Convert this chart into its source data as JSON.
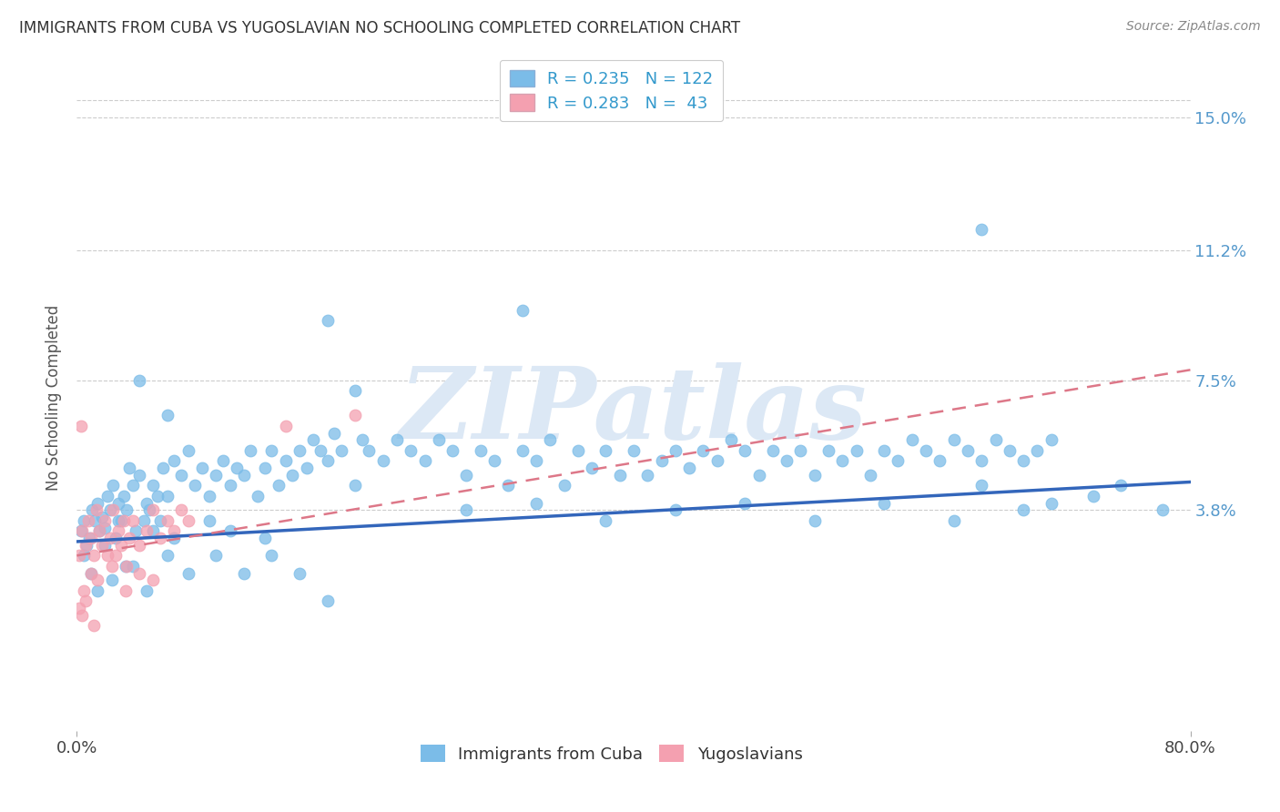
{
  "title": "IMMIGRANTS FROM CUBA VS YUGOSLAVIAN NO SCHOOLING COMPLETED CORRELATION CHART",
  "source": "Source: ZipAtlas.com",
  "ylabel_label": "No Schooling Completed",
  "ytick_values": [
    3.8,
    7.5,
    11.2,
    15.0
  ],
  "ytick_labels": [
    "3.8%",
    "7.5%",
    "11.2%",
    "15.0%"
  ],
  "xlim": [
    0.0,
    80.0
  ],
  "ylim": [
    -2.5,
    16.5
  ],
  "blue_color": "#7bbce8",
  "pink_color": "#f4a0b0",
  "trend_blue": "#3366bb",
  "trend_pink": "#dd7788",
  "watermark_color": "#dce8f5",
  "blue_line_x": [
    0,
    80
  ],
  "blue_line_y": [
    2.9,
    4.6
  ],
  "pink_line_x": [
    0,
    80
  ],
  "pink_line_y": [
    2.5,
    7.8
  ],
  "blue_scatter": [
    [
      0.3,
      3.2
    ],
    [
      0.5,
      3.5
    ],
    [
      0.7,
      2.8
    ],
    [
      0.9,
      3.0
    ],
    [
      1.1,
      3.8
    ],
    [
      1.3,
      3.5
    ],
    [
      1.5,
      4.0
    ],
    [
      1.6,
      3.2
    ],
    [
      1.8,
      3.6
    ],
    [
      2.0,
      3.3
    ],
    [
      2.2,
      4.2
    ],
    [
      2.4,
      3.8
    ],
    [
      2.6,
      4.5
    ],
    [
      2.8,
      3.0
    ],
    [
      3.0,
      4.0
    ],
    [
      3.2,
      3.5
    ],
    [
      3.4,
      4.2
    ],
    [
      3.6,
      3.8
    ],
    [
      3.8,
      5.0
    ],
    [
      4.0,
      4.5
    ],
    [
      4.2,
      3.2
    ],
    [
      4.5,
      4.8
    ],
    [
      4.8,
      3.5
    ],
    [
      5.0,
      4.0
    ],
    [
      5.2,
      3.8
    ],
    [
      5.5,
      4.5
    ],
    [
      5.8,
      4.2
    ],
    [
      6.0,
      3.5
    ],
    [
      6.2,
      5.0
    ],
    [
      6.5,
      4.2
    ],
    [
      7.0,
      5.2
    ],
    [
      7.5,
      4.8
    ],
    [
      8.0,
      5.5
    ],
    [
      8.5,
      4.5
    ],
    [
      9.0,
      5.0
    ],
    [
      9.5,
      4.2
    ],
    [
      10.0,
      4.8
    ],
    [
      10.5,
      5.2
    ],
    [
      11.0,
      4.5
    ],
    [
      11.5,
      5.0
    ],
    [
      12.0,
      4.8
    ],
    [
      12.5,
      5.5
    ],
    [
      13.0,
      4.2
    ],
    [
      13.5,
      5.0
    ],
    [
      14.0,
      5.5
    ],
    [
      14.5,
      4.5
    ],
    [
      15.0,
      5.2
    ],
    [
      15.5,
      4.8
    ],
    [
      16.0,
      5.5
    ],
    [
      16.5,
      5.0
    ],
    [
      17.0,
      5.8
    ],
    [
      17.5,
      5.5
    ],
    [
      18.0,
      5.2
    ],
    [
      18.5,
      6.0
    ],
    [
      19.0,
      5.5
    ],
    [
      20.0,
      4.5
    ],
    [
      20.5,
      5.8
    ],
    [
      21.0,
      5.5
    ],
    [
      22.0,
      5.2
    ],
    [
      23.0,
      5.8
    ],
    [
      24.0,
      5.5
    ],
    [
      25.0,
      5.2
    ],
    [
      26.0,
      5.8
    ],
    [
      27.0,
      5.5
    ],
    [
      28.0,
      4.8
    ],
    [
      29.0,
      5.5
    ],
    [
      30.0,
      5.2
    ],
    [
      31.0,
      4.5
    ],
    [
      32.0,
      5.5
    ],
    [
      33.0,
      5.2
    ],
    [
      34.0,
      5.8
    ],
    [
      35.0,
      4.5
    ],
    [
      36.0,
      5.5
    ],
    [
      37.0,
      5.0
    ],
    [
      38.0,
      5.5
    ],
    [
      39.0,
      4.8
    ],
    [
      40.0,
      5.5
    ],
    [
      41.0,
      4.8
    ],
    [
      42.0,
      5.2
    ],
    [
      43.0,
      5.5
    ],
    [
      44.0,
      5.0
    ],
    [
      45.0,
      5.5
    ],
    [
      46.0,
      5.2
    ],
    [
      47.0,
      5.8
    ],
    [
      48.0,
      5.5
    ],
    [
      49.0,
      4.8
    ],
    [
      50.0,
      5.5
    ],
    [
      51.0,
      5.2
    ],
    [
      52.0,
      5.5
    ],
    [
      53.0,
      4.8
    ],
    [
      54.0,
      5.5
    ],
    [
      55.0,
      5.2
    ],
    [
      56.0,
      5.5
    ],
    [
      57.0,
      4.8
    ],
    [
      58.0,
      5.5
    ],
    [
      59.0,
      5.2
    ],
    [
      60.0,
      5.8
    ],
    [
      61.0,
      5.5
    ],
    [
      62.0,
      5.2
    ],
    [
      63.0,
      5.8
    ],
    [
      64.0,
      5.5
    ],
    [
      65.0,
      5.2
    ],
    [
      66.0,
      5.8
    ],
    [
      67.0,
      5.5
    ],
    [
      68.0,
      5.2
    ],
    [
      69.0,
      5.5
    ],
    [
      70.0,
      5.8
    ],
    [
      1.0,
      2.0
    ],
    [
      1.5,
      1.5
    ],
    [
      2.5,
      1.8
    ],
    [
      3.5,
      2.2
    ],
    [
      5.0,
      1.5
    ],
    [
      6.5,
      2.5
    ],
    [
      8.0,
      2.0
    ],
    [
      10.0,
      2.5
    ],
    [
      12.0,
      2.0
    ],
    [
      14.0,
      2.5
    ],
    [
      16.0,
      2.0
    ],
    [
      18.0,
      1.2
    ],
    [
      0.5,
      2.5
    ],
    [
      2.0,
      2.8
    ],
    [
      4.0,
      2.2
    ],
    [
      3.0,
      3.5
    ],
    [
      5.5,
      3.2
    ],
    [
      7.0,
      3.0
    ],
    [
      9.5,
      3.5
    ],
    [
      11.0,
      3.2
    ],
    [
      13.5,
      3.0
    ],
    [
      28.0,
      3.8
    ],
    [
      33.0,
      4.0
    ],
    [
      38.0,
      3.5
    ],
    [
      43.0,
      3.8
    ],
    [
      48.0,
      4.0
    ],
    [
      53.0,
      3.5
    ],
    [
      58.0,
      4.0
    ],
    [
      63.0,
      3.5
    ],
    [
      68.0,
      3.8
    ],
    [
      73.0,
      4.2
    ],
    [
      65.0,
      4.5
    ],
    [
      70.0,
      4.0
    ],
    [
      75.0,
      4.5
    ],
    [
      78.0,
      3.8
    ],
    [
      18.0,
      9.2
    ],
    [
      32.0,
      9.5
    ],
    [
      65.0,
      11.8
    ],
    [
      6.5,
      6.5
    ],
    [
      4.5,
      7.5
    ],
    [
      20.0,
      7.2
    ]
  ],
  "pink_scatter": [
    [
      0.2,
      2.5
    ],
    [
      0.4,
      3.2
    ],
    [
      0.6,
      2.8
    ],
    [
      0.8,
      3.5
    ],
    [
      1.0,
      3.0
    ],
    [
      1.2,
      2.5
    ],
    [
      1.4,
      3.8
    ],
    [
      1.6,
      3.2
    ],
    [
      1.8,
      2.8
    ],
    [
      2.0,
      3.5
    ],
    [
      2.2,
      2.5
    ],
    [
      2.4,
      3.0
    ],
    [
      2.6,
      3.8
    ],
    [
      2.8,
      2.5
    ],
    [
      3.0,
      3.2
    ],
    [
      3.2,
      2.8
    ],
    [
      3.4,
      3.5
    ],
    [
      3.6,
      2.2
    ],
    [
      3.8,
      3.0
    ],
    [
      4.0,
      3.5
    ],
    [
      4.5,
      2.8
    ],
    [
      5.0,
      3.2
    ],
    [
      5.5,
      3.8
    ],
    [
      6.0,
      3.0
    ],
    [
      6.5,
      3.5
    ],
    [
      7.0,
      3.2
    ],
    [
      7.5,
      3.8
    ],
    [
      8.0,
      3.5
    ],
    [
      0.5,
      1.5
    ],
    [
      1.0,
      2.0
    ],
    [
      1.5,
      1.8
    ],
    [
      2.5,
      2.2
    ],
    [
      3.5,
      1.5
    ],
    [
      4.5,
      2.0
    ],
    [
      5.5,
      1.8
    ],
    [
      0.3,
      6.2
    ],
    [
      15.0,
      6.2
    ],
    [
      20.0,
      6.5
    ],
    [
      0.2,
      1.0
    ],
    [
      0.4,
      0.8
    ],
    [
      0.6,
      1.2
    ],
    [
      1.2,
      0.5
    ]
  ]
}
